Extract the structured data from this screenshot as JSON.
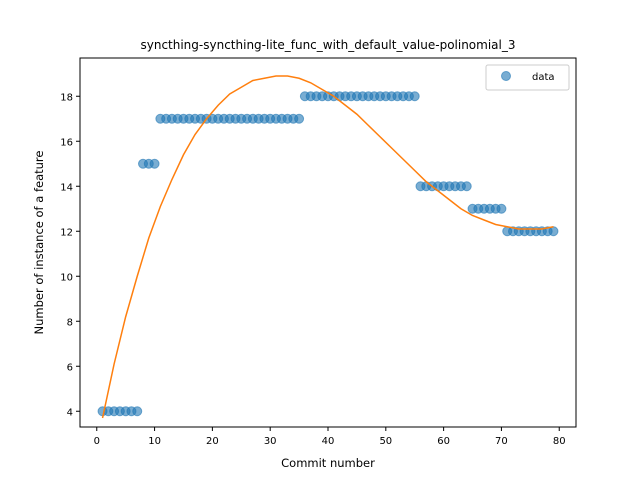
{
  "chart_data": {
    "type": "scatter",
    "title": "syncthing-syncthing-lite_func_with_default_value-polinomial_3",
    "xlabel": "Commit number",
    "ylabel": "Number of instance of a feature",
    "xlim": [
      -2.9,
      82.9
    ],
    "ylim": [
      3.3,
      19.7
    ],
    "xticks": [
      0,
      10,
      20,
      30,
      40,
      50,
      60,
      70,
      80
    ],
    "yticks": [
      4,
      6,
      8,
      10,
      12,
      14,
      16,
      18
    ],
    "grid": false,
    "legend_position": "top-right",
    "series": [
      {
        "name": "data",
        "type": "scatter",
        "color": "#1f77b4",
        "x": [
          1,
          2,
          3,
          4,
          5,
          6,
          7,
          8,
          9,
          10,
          11,
          12,
          13,
          14,
          15,
          16,
          17,
          18,
          19,
          20,
          21,
          22,
          23,
          24,
          25,
          26,
          27,
          28,
          29,
          30,
          31,
          32,
          33,
          34,
          35,
          36,
          37,
          38,
          39,
          40,
          41,
          42,
          43,
          44,
          45,
          46,
          47,
          48,
          49,
          50,
          51,
          52,
          53,
          54,
          55,
          56,
          57,
          58,
          59,
          60,
          61,
          62,
          63,
          64,
          65,
          66,
          67,
          68,
          69,
          70,
          71,
          72,
          73,
          74,
          75,
          76,
          77,
          78,
          79
        ],
        "y": [
          4,
          4,
          4,
          4,
          4,
          4,
          4,
          15,
          15,
          15,
          17,
          17,
          17,
          17,
          17,
          17,
          17,
          17,
          17,
          17,
          17,
          17,
          17,
          17,
          17,
          17,
          17,
          17,
          17,
          17,
          17,
          17,
          17,
          17,
          17,
          18,
          18,
          18,
          18,
          18,
          18,
          18,
          18,
          18,
          18,
          18,
          18,
          18,
          18,
          18,
          18,
          18,
          18,
          18,
          18,
          14,
          14,
          14,
          14,
          14,
          14,
          14,
          14,
          14,
          13,
          13,
          13,
          13,
          13,
          13,
          12,
          12,
          12,
          12,
          12,
          12,
          12,
          12,
          12
        ]
      },
      {
        "type": "line",
        "color": "#ff7f0e",
        "x": [
          1,
          3,
          5,
          7,
          9,
          11,
          13,
          15,
          17,
          19,
          21,
          23,
          25,
          27,
          29,
          31,
          33,
          35,
          37,
          39,
          41,
          43,
          45,
          47,
          49,
          51,
          53,
          55,
          57,
          59,
          61,
          63,
          65,
          67,
          69,
          71,
          73,
          75,
          77,
          79
        ],
        "y": [
          3.7,
          6.1,
          8.2,
          10.0,
          11.7,
          13.1,
          14.3,
          15.4,
          16.3,
          17.0,
          17.6,
          18.1,
          18.4,
          18.7,
          18.8,
          18.9,
          18.9,
          18.8,
          18.6,
          18.3,
          18.0,
          17.6,
          17.2,
          16.7,
          16.2,
          15.7,
          15.2,
          14.7,
          14.2,
          13.8,
          13.4,
          13.0,
          12.7,
          12.5,
          12.3,
          12.2,
          12.1,
          12.1,
          12.1,
          12.2
        ]
      }
    ]
  }
}
